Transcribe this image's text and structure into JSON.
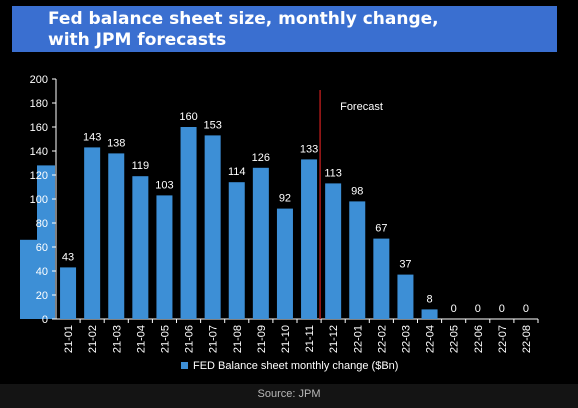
{
  "colors": {
    "bar": "#3d8fd6",
    "forecast_line": "#a01818",
    "background": "#000000",
    "title_bar": "#3a6fd0",
    "text": "#ffffff"
  },
  "chart_data": {
    "type": "bar",
    "title_lines": [
      "Fed balance sheet size, monthly change,",
      "with JPM forecasts"
    ],
    "categories": [
      "21-01",
      "21-02",
      "21-03",
      "21-04",
      "21-05",
      "21-06",
      "21-07",
      "21-08",
      "21-09",
      "21-10",
      "21-11",
      "21-12",
      "22-01",
      "22-02",
      "22-03",
      "22-04",
      "22-05",
      "22-06",
      "22-07",
      "22-08"
    ],
    "series": [
      {
        "name": "FED Balance sheet monthly change ($Bn)",
        "values": [
          43,
          143,
          138,
          119,
          103,
          160,
          153,
          114,
          126,
          92,
          133,
          113,
          98,
          67,
          37,
          8,
          0,
          0,
          0,
          0
        ]
      }
    ],
    "ylim": [
      0,
      200
    ],
    "yticks": [
      0,
      20,
      40,
      60,
      80,
      100,
      120,
      140,
      160,
      180,
      200
    ],
    "data_labels": true,
    "forecast_annotation": {
      "label": "Forecast",
      "between_categories": [
        "21-11",
        "21-12"
      ]
    },
    "legend_position": "bottom",
    "grid": false,
    "partial_bars_left_edge": [
      128,
      66
    ]
  },
  "source": "Source: JPM"
}
